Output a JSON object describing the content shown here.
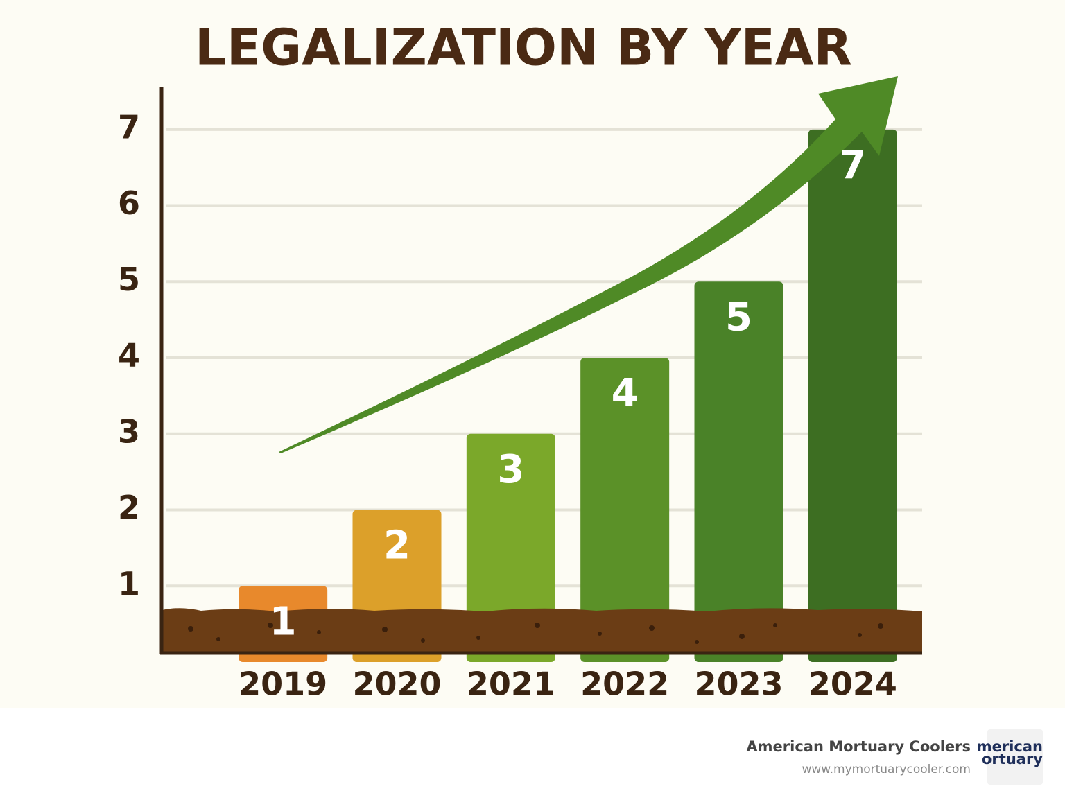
{
  "chart_data": {
    "type": "bar",
    "title": "LEGALIZATION BY YEAR",
    "categories": [
      "2019",
      "2020",
      "2021",
      "2022",
      "2023",
      "2024"
    ],
    "values": [
      1,
      2,
      3,
      4,
      5,
      7
    ],
    "colors": [
      "#e8892c",
      "#dca02a",
      "#7ba82a",
      "#5b9128",
      "#4a8228",
      "#3d6e22"
    ],
    "ylim": [
      0,
      7.7
    ],
    "yticks": [
      1,
      2,
      3,
      4,
      5,
      6,
      7
    ],
    "grid": true
  },
  "footer": {
    "company": "American Mortuary Coolers",
    "url": "www.mymortuarycooler.com",
    "logo": [
      "merican",
      "ortuary"
    ]
  }
}
